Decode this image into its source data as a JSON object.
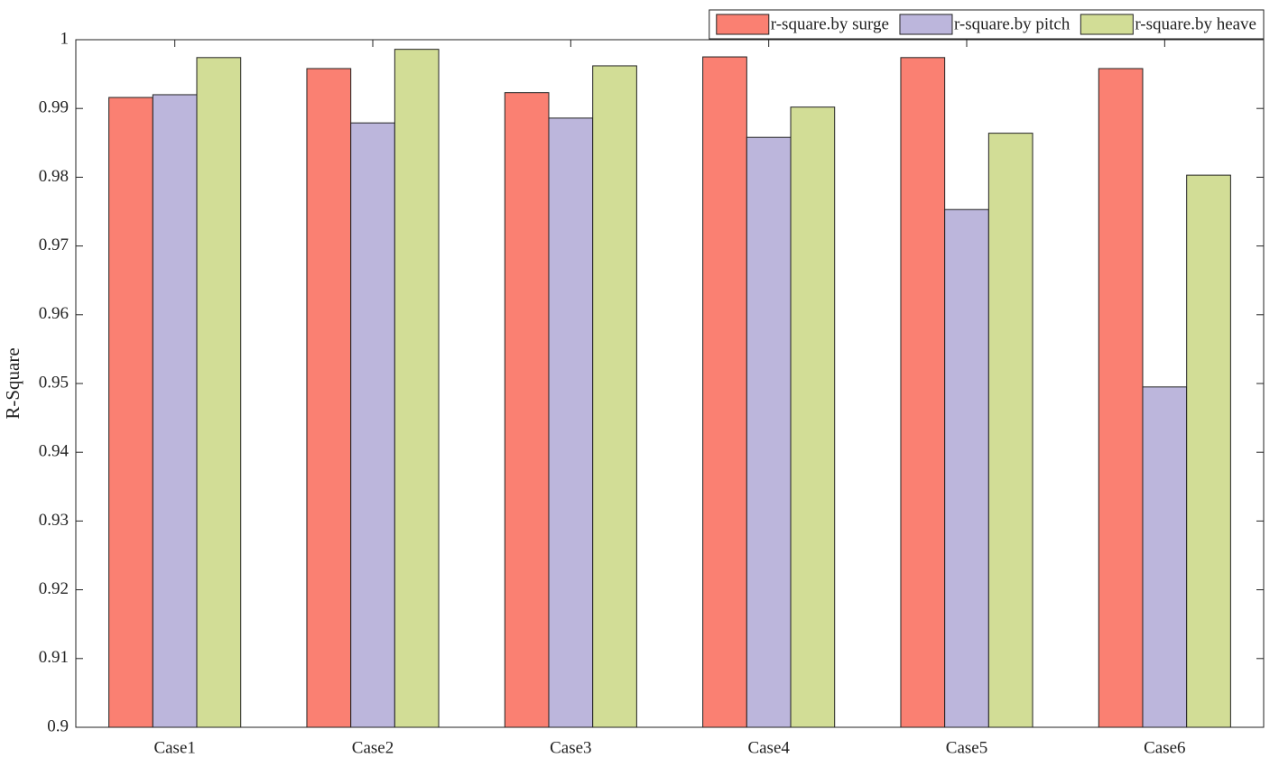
{
  "chart_data": {
    "type": "bar",
    "y_label": "R-Square",
    "categories": [
      "Case1",
      "Case2",
      "Case3",
      "Case4",
      "Case5",
      "Case6"
    ],
    "series": [
      {
        "name": "r-square.by surge",
        "color": "#fa8072",
        "values": [
          0.9916,
          0.9958,
          0.9923,
          0.9975,
          0.9974,
          0.9958
        ]
      },
      {
        "name": "r-square.by pitch",
        "color": "#bcb6dc",
        "values": [
          0.992,
          0.9879,
          0.9886,
          0.9858,
          0.9753,
          0.9495
        ]
      },
      {
        "name": "r-square.by heave",
        "color": "#d2dd96",
        "values": [
          0.9974,
          0.9986,
          0.9962,
          0.9902,
          0.9864,
          0.9803
        ]
      }
    ],
    "ylim": [
      0.9,
      1
    ],
    "yticks": [
      0.9,
      0.91,
      0.92,
      0.93,
      0.94,
      0.95,
      0.96,
      0.97,
      0.98,
      0.99,
      1
    ],
    "legend": "top-right",
    "grid": false
  }
}
